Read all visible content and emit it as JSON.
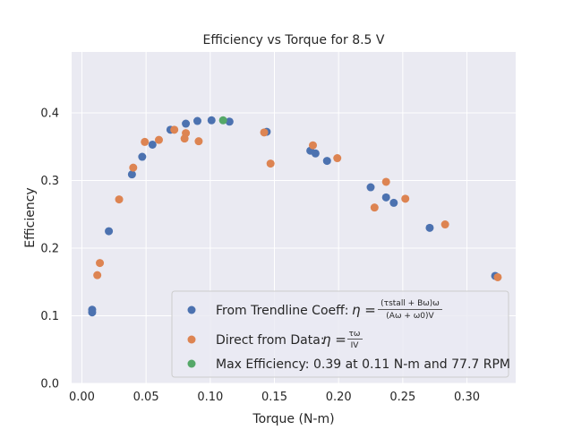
{
  "chart_data": {
    "type": "scatter",
    "title": "Efficiency vs Torque for 8.5 V",
    "xlabel": "Torque (N-m)",
    "ylabel": "Efficiency",
    "xlim": [
      -0.008,
      0.338
    ],
    "ylim": [
      0.0,
      0.49
    ],
    "xticks": [
      0.0,
      0.05,
      0.1,
      0.15,
      0.2,
      0.25,
      0.3
    ],
    "xtick_labels": [
      "0.00",
      "0.05",
      "0.10",
      "0.15",
      "0.20",
      "0.25",
      "0.30"
    ],
    "yticks": [
      0.0,
      0.1,
      0.2,
      0.3,
      0.4
    ],
    "ytick_labels": [
      "0.0",
      "0.1",
      "0.2",
      "0.3",
      "0.4"
    ],
    "grid": true,
    "legend_placement": "lower-right",
    "colors": {
      "plot_background": "#eaeaf2",
      "grid": "#ffffff",
      "trendline": "#4c72b0",
      "direct": "#dd8452",
      "max": "#55a868"
    },
    "series": [
      {
        "name": "From Trendline Coeff",
        "legend": {
          "prefix": "From Trendline Coeff: ",
          "eta": "η =",
          "numerator": "(τstall + Bω)ω",
          "denominator": "(Aω + ω0)V"
        },
        "color": "#4c72b0",
        "points": [
          [
            0.008,
            0.105
          ],
          [
            0.008,
            0.109
          ],
          [
            0.021,
            0.225
          ],
          [
            0.039,
            0.309
          ],
          [
            0.047,
            0.335
          ],
          [
            0.055,
            0.353
          ],
          [
            0.069,
            0.375
          ],
          [
            0.081,
            0.384
          ],
          [
            0.09,
            0.388
          ],
          [
            0.101,
            0.389
          ],
          [
            0.115,
            0.387
          ],
          [
            0.144,
            0.372
          ],
          [
            0.178,
            0.344
          ],
          [
            0.182,
            0.34
          ],
          [
            0.191,
            0.329
          ],
          [
            0.225,
            0.29
          ],
          [
            0.237,
            0.275
          ],
          [
            0.243,
            0.267
          ],
          [
            0.271,
            0.23
          ],
          [
            0.322,
            0.159
          ]
        ]
      },
      {
        "name": "Direct from Data",
        "legend": {
          "prefix": "Direct from Data: ",
          "eta": "η =",
          "numerator": "τω",
          "denominator": "IV"
        },
        "color": "#dd8452",
        "points": [
          [
            0.012,
            0.16
          ],
          [
            0.014,
            0.178
          ],
          [
            0.029,
            0.272
          ],
          [
            0.04,
            0.319
          ],
          [
            0.049,
            0.357
          ],
          [
            0.06,
            0.36
          ],
          [
            0.072,
            0.375
          ],
          [
            0.08,
            0.362
          ],
          [
            0.081,
            0.37
          ],
          [
            0.091,
            0.358
          ],
          [
            0.142,
            0.371
          ],
          [
            0.147,
            0.325
          ],
          [
            0.18,
            0.352
          ],
          [
            0.199,
            0.333
          ],
          [
            0.228,
            0.26
          ],
          [
            0.237,
            0.298
          ],
          [
            0.252,
            0.273
          ],
          [
            0.283,
            0.235
          ],
          [
            0.324,
            0.157
          ]
        ]
      },
      {
        "name": "Max Efficiency: 0.39 at 0.11 N-m and 77.7 RPM",
        "legend": {
          "prefix": "Max Efficiency: 0.39 at 0.11 N-m and 77.7 RPM"
        },
        "color": "#55a868",
        "points": [
          [
            0.11,
            0.389
          ]
        ]
      }
    ]
  }
}
